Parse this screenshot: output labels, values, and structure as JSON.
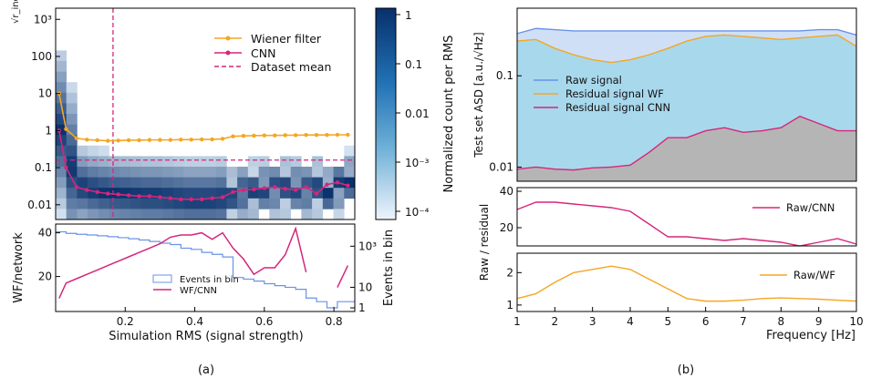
{
  "panel_labels": {
    "a": "(a)",
    "b": "(b)"
  },
  "colors": {
    "wiener": "#f5a623",
    "cnn": "#d6267a",
    "raw": "#6a93e6",
    "raw_fill": "#a8d8ec",
    "resid_fill": "#b5b5b5",
    "events": "#6a93e6",
    "cmap_dark": "#08306b",
    "cmap_light": "#deebf7"
  },
  "chart_data": [
    {
      "id": "a_top",
      "type": "line",
      "ylabel": "√r_ind",
      "yscale": "log",
      "ylim": [
        0.004,
        2000
      ],
      "xlim": [
        0.0,
        0.86
      ],
      "yticks": [
        "10³",
        "100",
        "10",
        "1",
        "0.1",
        "0.01"
      ],
      "legend": [
        "Wiener filter",
        "CNN",
        "Dataset mean"
      ],
      "vline_x": 0.165,
      "hline_y": 0.16,
      "series": [
        {
          "name": "Wiener filter",
          "x": [
            0.01,
            0.03,
            0.06,
            0.09,
            0.12,
            0.15,
            0.18,
            0.21,
            0.24,
            0.27,
            0.3,
            0.33,
            0.36,
            0.39,
            0.42,
            0.45,
            0.48,
            0.51,
            0.54,
            0.57,
            0.6,
            0.63,
            0.66,
            0.69,
            0.72,
            0.75,
            0.78,
            0.81,
            0.84
          ],
          "y": [
            10,
            1.1,
            0.62,
            0.57,
            0.55,
            0.53,
            0.54,
            0.55,
            0.55,
            0.56,
            0.56,
            0.56,
            0.57,
            0.57,
            0.58,
            0.58,
            0.6,
            0.7,
            0.72,
            0.73,
            0.74,
            0.74,
            0.75,
            0.75,
            0.76,
            0.76,
            0.76,
            0.77,
            0.77
          ]
        },
        {
          "name": "CNN",
          "x": [
            0.01,
            0.03,
            0.06,
            0.09,
            0.12,
            0.15,
            0.18,
            0.21,
            0.24,
            0.27,
            0.3,
            0.33,
            0.36,
            0.39,
            0.42,
            0.45,
            0.48,
            0.51,
            0.54,
            0.57,
            0.6,
            0.63,
            0.66,
            0.69,
            0.72,
            0.75,
            0.78,
            0.81,
            0.84
          ],
          "y": [
            1.0,
            0.1,
            0.03,
            0.025,
            0.022,
            0.02,
            0.019,
            0.018,
            0.017,
            0.017,
            0.016,
            0.015,
            0.014,
            0.014,
            0.014,
            0.015,
            0.016,
            0.022,
            0.025,
            0.026,
            0.028,
            0.03,
            0.027,
            0.025,
            0.03,
            0.02,
            0.035,
            0.04,
            0.033
          ]
        }
      ],
      "colorbar": {
        "label": "Normalized count per RMS",
        "ticks": [
          "1",
          "0.1",
          "0.01",
          "10⁻³",
          "10⁻⁴"
        ]
      }
    },
    {
      "id": "a_bottom",
      "type": "line",
      "xlabel": "Simulation RMS (signal strength)",
      "ylabel": "WF/network",
      "ylabel_right": "Events in bin",
      "xticks": [
        "0.2",
        "0.4",
        "0.6",
        "0.8"
      ],
      "yticks_left": [
        "20",
        "40"
      ],
      "yticks_right": [
        "1",
        "10",
        "10³"
      ],
      "legend": [
        "Events in bin",
        "WF/CNN"
      ],
      "series": [
        {
          "name": "WF/CNN",
          "x": [
            0.01,
            0.03,
            0.06,
            0.09,
            0.12,
            0.15,
            0.18,
            0.21,
            0.24,
            0.27,
            0.3,
            0.33,
            0.36,
            0.39,
            0.42,
            0.45,
            0.48,
            0.51,
            0.54,
            0.57,
            0.6,
            0.63,
            0.66,
            0.69,
            0.72,
            0.75
          ],
          "y": [
            10,
            17,
            19,
            21,
            23,
            25,
            27,
            29,
            31,
            33,
            35,
            38,
            39,
            39,
            40,
            37,
            40,
            33,
            28,
            21,
            24,
            24,
            30,
            42,
            22,
            null
          ]
        },
        {
          "name": "WF/CNN tail",
          "x": [
            0.81,
            0.84
          ],
          "y": [
            15,
            25
          ]
        },
        {
          "name": "Events in bin",
          "type": "step",
          "x": [
            0.0,
            0.03,
            0.06,
            0.09,
            0.12,
            0.15,
            0.18,
            0.21,
            0.24,
            0.27,
            0.3,
            0.33,
            0.36,
            0.39,
            0.42,
            0.45,
            0.48,
            0.51,
            0.54,
            0.57,
            0.6,
            0.63,
            0.66,
            0.69,
            0.72,
            0.75,
            0.78,
            0.81,
            0.84,
            0.86
          ],
          "y": [
            5000,
            4200,
            3800,
            3500,
            3200,
            2900,
            2600,
            2300,
            2000,
            1700,
            1400,
            1200,
            800,
            700,
            500,
            400,
            300,
            30,
            25,
            20,
            15,
            12,
            10,
            8,
            3,
            2,
            1,
            2,
            2,
            2
          ]
        }
      ]
    },
    {
      "id": "b_top",
      "type": "area",
      "ylabel": "Test set ASD [a.u./√Hz]",
      "yscale": "log",
      "ylim": [
        0.007,
        0.55
      ],
      "xlim": [
        1,
        10
      ],
      "yticks": [
        "0.1",
        "0.01"
      ],
      "legend": [
        "Raw signal",
        "Residual signal WF",
        "Residual signal CNN"
      ],
      "series": [
        {
          "name": "Raw signal",
          "x": [
            1,
            1.5,
            2,
            2.5,
            3,
            3.5,
            4,
            4.5,
            5,
            5.5,
            6,
            6.5,
            7,
            7.5,
            8,
            8.5,
            9,
            9.5,
            10
          ],
          "y": [
            0.29,
            0.33,
            0.32,
            0.31,
            0.31,
            0.31,
            0.31,
            0.31,
            0.31,
            0.31,
            0.31,
            0.31,
            0.31,
            0.31,
            0.31,
            0.31,
            0.32,
            0.32,
            0.28
          ]
        },
        {
          "name": "Residual signal WF",
          "x": [
            1,
            1.5,
            2,
            2.5,
            3,
            3.5,
            4,
            4.5,
            5,
            5.5,
            6,
            6.5,
            7,
            7.5,
            8,
            8.5,
            9,
            9.5,
            10
          ],
          "y": [
            0.24,
            0.25,
            0.2,
            0.17,
            0.15,
            0.14,
            0.15,
            0.17,
            0.2,
            0.24,
            0.27,
            0.28,
            0.27,
            0.26,
            0.25,
            0.26,
            0.27,
            0.28,
            0.21
          ]
        },
        {
          "name": "Residual signal CNN",
          "x": [
            1,
            1.5,
            2,
            2.5,
            3,
            3.5,
            4,
            4.5,
            5,
            5.5,
            6,
            6.5,
            7,
            7.5,
            8,
            8.5,
            9,
            9.5,
            10
          ],
          "y": [
            0.0095,
            0.01,
            0.0095,
            0.0093,
            0.0098,
            0.01,
            0.0105,
            0.0145,
            0.021,
            0.021,
            0.025,
            0.027,
            0.024,
            0.025,
            0.027,
            0.036,
            0.03,
            0.025,
            0.025
          ]
        }
      ]
    },
    {
      "id": "b_mid",
      "type": "line",
      "ylabel": "Raw / residual",
      "yticks": [
        "20",
        "40"
      ],
      "ylim": [
        10,
        42
      ],
      "legend": [
        "Raw/CNN"
      ],
      "series": [
        {
          "name": "Raw/CNN",
          "x": [
            1,
            1.5,
            2,
            2.5,
            3,
            3.5,
            4,
            4.5,
            5,
            5.5,
            6,
            6.5,
            7,
            7.5,
            8,
            8.5,
            9,
            9.5,
            10
          ],
          "y": [
            30,
            34,
            34,
            33,
            32,
            31,
            29,
            22,
            15,
            15,
            14,
            13,
            14,
            13,
            12,
            10,
            12,
            14,
            11
          ]
        }
      ]
    },
    {
      "id": "b_bottom",
      "type": "line",
      "xlabel": "Frequency [Hz]",
      "xticks": [
        "1",
        "2",
        "3",
        "4",
        "5",
        "6",
        "7",
        "8",
        "9",
        "10"
      ],
      "yticks": [
        "1",
        "2"
      ],
      "ylim": [
        0.8,
        2.6
      ],
      "legend": [
        "Raw/WF"
      ],
      "series": [
        {
          "name": "Raw/WF",
          "x": [
            1,
            1.5,
            2,
            2.5,
            3,
            3.5,
            4,
            4.5,
            5,
            5.5,
            6,
            6.5,
            7,
            7.5,
            8,
            8.5,
            9,
            9.5,
            10
          ],
          "y": [
            1.2,
            1.35,
            1.7,
            2.0,
            2.1,
            2.2,
            2.1,
            1.8,
            1.5,
            1.2,
            1.12,
            1.12,
            1.15,
            1.2,
            1.22,
            1.2,
            1.18,
            1.15,
            1.12
          ]
        }
      ]
    }
  ]
}
